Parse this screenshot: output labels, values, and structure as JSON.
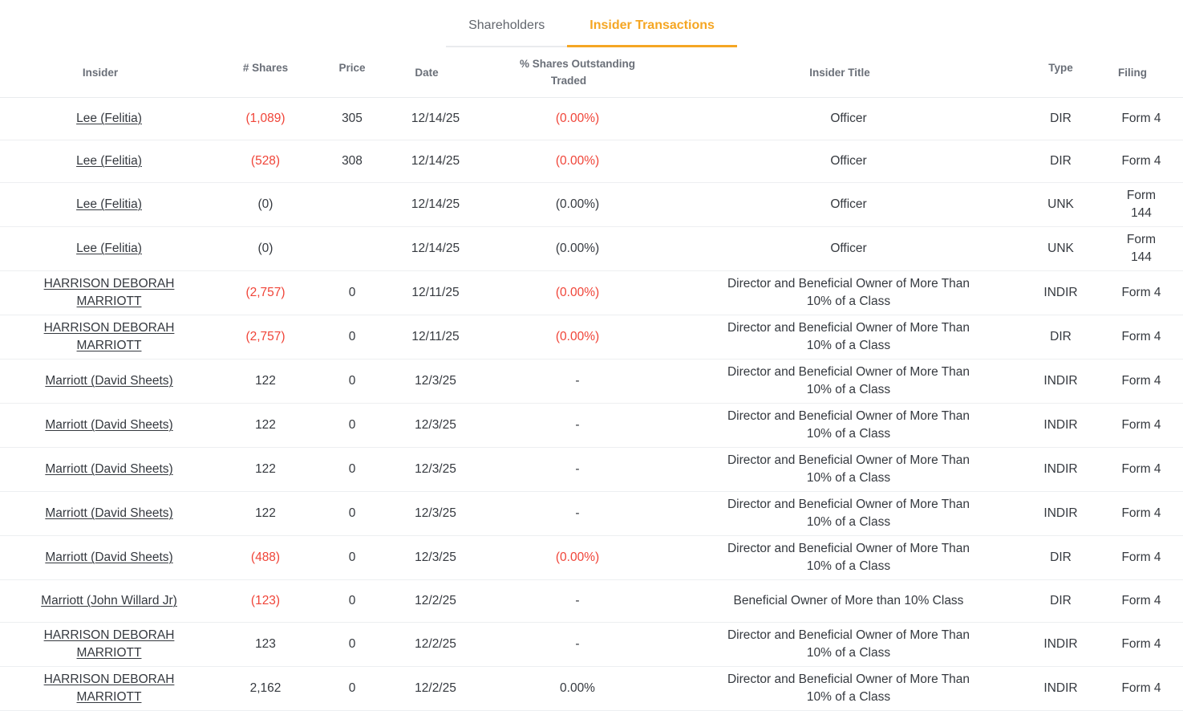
{
  "tabs": [
    {
      "label": "Shareholders",
      "active": false
    },
    {
      "label": "Insider Transactions",
      "active": true
    }
  ],
  "colors": {
    "accent_orange": "#f5a623",
    "negative_red": "#f04438",
    "body_text": "#35393f",
    "header_text": "#6a6f78",
    "row_border": "#edeff1"
  },
  "table": {
    "columns": [
      {
        "id": "insider",
        "label": "Insider"
      },
      {
        "id": "shares",
        "label": "# Shares"
      },
      {
        "id": "price",
        "label": "Price"
      },
      {
        "id": "date",
        "label": "Date"
      },
      {
        "id": "pct",
        "label": "% Shares Outstanding Traded",
        "lines": [
          "% Shares Outstanding",
          "Traded"
        ]
      },
      {
        "id": "title",
        "label": "Insider Title"
      },
      {
        "id": "type",
        "label": "Type"
      },
      {
        "id": "filing",
        "label": "Filing"
      }
    ],
    "rows": [
      {
        "insider_lines": [
          "Lee (Felitia)"
        ],
        "shares": "(1,089)",
        "shares_negative": true,
        "price": "305",
        "date": "12/14/25",
        "pct": "(0.00%)",
        "pct_negative": true,
        "title_lines": [
          "Officer"
        ],
        "type": "DIR",
        "filing_lines": [
          "Form 4"
        ]
      },
      {
        "insider_lines": [
          "Lee (Felitia)"
        ],
        "shares": "(528)",
        "shares_negative": true,
        "price": "308",
        "date": "12/14/25",
        "pct": "(0.00%)",
        "pct_negative": true,
        "title_lines": [
          "Officer"
        ],
        "type": "DIR",
        "filing_lines": [
          "Form 4"
        ]
      },
      {
        "insider_lines": [
          "Lee (Felitia)"
        ],
        "shares": "(0)",
        "shares_negative": false,
        "price": "",
        "date": "12/14/25",
        "pct": "(0.00%)",
        "pct_negative": false,
        "title_lines": [
          "Officer"
        ],
        "type": "UNK",
        "filing_lines": [
          "Form",
          "144"
        ]
      },
      {
        "insider_lines": [
          "Lee (Felitia)"
        ],
        "shares": "(0)",
        "shares_negative": false,
        "price": "",
        "date": "12/14/25",
        "pct": "(0.00%)",
        "pct_negative": false,
        "title_lines": [
          "Officer"
        ],
        "type": "UNK",
        "filing_lines": [
          "Form",
          "144"
        ]
      },
      {
        "insider_lines": [
          "HARRISON DEBORAH",
          "MARRIOTT"
        ],
        "shares": "(2,757)",
        "shares_negative": true,
        "price": "0",
        "date": "12/11/25",
        "pct": "(0.00%)",
        "pct_negative": true,
        "title_lines": [
          "Director and Beneficial Owner of More Than",
          "10% of a Class"
        ],
        "type": "INDIR",
        "filing_lines": [
          "Form 4"
        ]
      },
      {
        "insider_lines": [
          "HARRISON DEBORAH",
          "MARRIOTT"
        ],
        "shares": "(2,757)",
        "shares_negative": true,
        "price": "0",
        "date": "12/11/25",
        "pct": "(0.00%)",
        "pct_negative": true,
        "title_lines": [
          "Director and Beneficial Owner of More Than",
          "10% of a Class"
        ],
        "type": "DIR",
        "filing_lines": [
          "Form 4"
        ]
      },
      {
        "insider_lines": [
          "Marriott (David Sheets)"
        ],
        "shares": "122",
        "shares_negative": false,
        "price": "0",
        "date": "12/3/25",
        "pct": "-",
        "pct_negative": false,
        "title_lines": [
          "Director and Beneficial Owner of More Than",
          "10% of a Class"
        ],
        "type": "INDIR",
        "filing_lines": [
          "Form 4"
        ]
      },
      {
        "insider_lines": [
          "Marriott (David Sheets)"
        ],
        "shares": "122",
        "shares_negative": false,
        "price": "0",
        "date": "12/3/25",
        "pct": "-",
        "pct_negative": false,
        "title_lines": [
          "Director and Beneficial Owner of More Than",
          "10% of a Class"
        ],
        "type": "INDIR",
        "filing_lines": [
          "Form 4"
        ]
      },
      {
        "insider_lines": [
          "Marriott (David Sheets)"
        ],
        "shares": "122",
        "shares_negative": false,
        "price": "0",
        "date": "12/3/25",
        "pct": "-",
        "pct_negative": false,
        "title_lines": [
          "Director and Beneficial Owner of More Than",
          "10% of a Class"
        ],
        "type": "INDIR",
        "filing_lines": [
          "Form 4"
        ]
      },
      {
        "insider_lines": [
          "Marriott (David Sheets)"
        ],
        "shares": "122",
        "shares_negative": false,
        "price": "0",
        "date": "12/3/25",
        "pct": "-",
        "pct_negative": false,
        "title_lines": [
          "Director and Beneficial Owner of More Than",
          "10% of a Class"
        ],
        "type": "INDIR",
        "filing_lines": [
          "Form 4"
        ]
      },
      {
        "insider_lines": [
          "Marriott (David Sheets)"
        ],
        "shares": "(488)",
        "shares_negative": true,
        "price": "0",
        "date": "12/3/25",
        "pct": "(0.00%)",
        "pct_negative": true,
        "title_lines": [
          "Director and Beneficial Owner of More Than",
          "10% of a Class"
        ],
        "type": "DIR",
        "filing_lines": [
          "Form 4"
        ]
      },
      {
        "insider_lines": [
          "Marriott (John Willard Jr)"
        ],
        "shares": "(123)",
        "shares_negative": true,
        "price": "0",
        "date": "12/2/25",
        "pct": "-",
        "pct_negative": false,
        "title_lines": [
          "Beneficial Owner of More than 10% Class"
        ],
        "type": "DIR",
        "filing_lines": [
          "Form 4"
        ]
      },
      {
        "insider_lines": [
          "HARRISON DEBORAH",
          "MARRIOTT"
        ],
        "shares": "123",
        "shares_negative": false,
        "price": "0",
        "date": "12/2/25",
        "pct": "-",
        "pct_negative": false,
        "title_lines": [
          "Director and Beneficial Owner of More Than",
          "10% of a Class"
        ],
        "type": "INDIR",
        "filing_lines": [
          "Form 4"
        ]
      },
      {
        "insider_lines": [
          "HARRISON DEBORAH",
          "MARRIOTT"
        ],
        "shares": "2,162",
        "shares_negative": false,
        "price": "0",
        "date": "12/2/25",
        "pct": "0.00%",
        "pct_negative": false,
        "title_lines": [
          "Director and Beneficial Owner of More Than",
          "10% of a Class"
        ],
        "type": "INDIR",
        "filing_lines": [
          "Form 4"
        ]
      }
    ]
  }
}
